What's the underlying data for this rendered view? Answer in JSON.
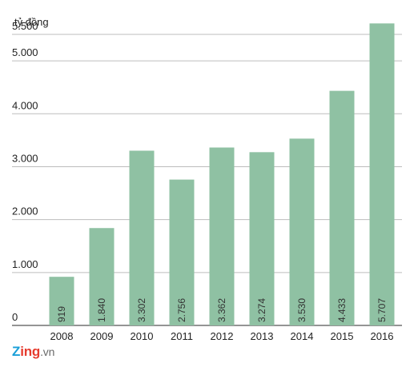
{
  "chart_data": {
    "type": "bar",
    "ylabel": "tỷ đồng",
    "ylim": [
      0,
      5500
    ],
    "yticks": [
      {
        "value": 0,
        "label": "0"
      },
      {
        "value": 1000,
        "label": "1.000"
      },
      {
        "value": 2000,
        "label": "2.000"
      },
      {
        "value": 3000,
        "label": "3.000"
      },
      {
        "value": 4000,
        "label": "4.000"
      },
      {
        "value": 5000,
        "label": "5.000"
      },
      {
        "value": 5500,
        "label": "5.500"
      }
    ],
    "categories": [
      "2008",
      "2009",
      "2010",
      "2011",
      "2012",
      "2013",
      "2014",
      "2015",
      "2016"
    ],
    "values": [
      919,
      1840,
      3302,
      2756,
      3362,
      3274,
      3530,
      4433,
      5707
    ],
    "data_labels": [
      "919",
      "1.840",
      "3.302",
      "2.756",
      "3.362",
      "3.274",
      "3.530",
      "4.433",
      "5.707"
    ],
    "grid": true,
    "bar_color": "#8fc1a3"
  },
  "brand": {
    "logo_z": "Z",
    "logo_ing": "ing",
    "logo_vn": ".vn"
  }
}
